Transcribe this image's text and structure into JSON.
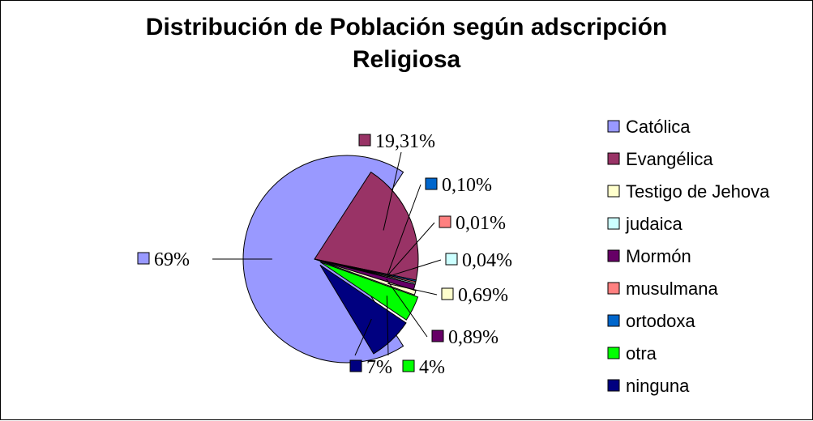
{
  "chart_data": {
    "type": "pie",
    "title_lines": [
      "Distribución de Población según adscripción",
      "Religiosa"
    ],
    "categories": [
      "Católica",
      "Evangélica",
      "Testigo de Jehova",
      "judaica",
      "Mormón",
      "musulmana",
      "ortodoxa",
      "otra",
      "ninguna"
    ],
    "values": [
      69,
      19.31,
      0.69,
      0.04,
      0.89,
      0.01,
      0.1,
      4,
      7
    ],
    "data_labels": [
      "69%",
      "19,31%",
      "0,69%",
      "0,04%",
      "0,89%",
      "0,01%",
      "0,10%",
      "4%",
      "7%"
    ],
    "colors": [
      "#9999FF",
      "#993366",
      "#FFFFCC",
      "#CCFFFF",
      "#660066",
      "#FF8080",
      "#0066CC",
      "#00FF00",
      "#000080"
    ],
    "legend_position": "right",
    "exploded": true
  }
}
